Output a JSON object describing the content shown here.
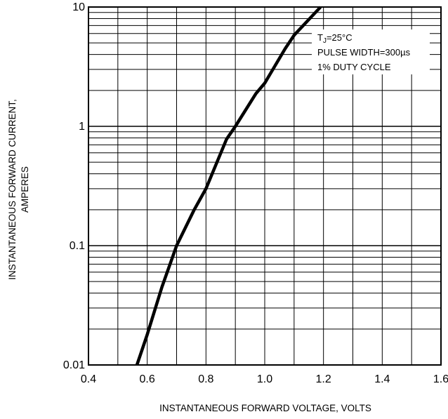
{
  "chart_data": {
    "type": "line",
    "x_scale": "linear",
    "y_scale": "log",
    "xlim": [
      0.4,
      1.6
    ],
    "ylim": [
      0.01,
      10
    ],
    "x_ticks": [
      0.4,
      0.6,
      0.8,
      1.0,
      1.2,
      1.4,
      1.6
    ],
    "x_tick_labels": [
      "0.4",
      "0.6",
      "0.8",
      "1.0",
      "1.2",
      "1.4",
      "1.6"
    ],
    "y_ticks": [
      0.01,
      0.1,
      1,
      10
    ],
    "y_tick_labels": [
      "0.01",
      "0.1",
      "1",
      "10"
    ],
    "xlabel": "INSTANTANEOUS FORWARD VOLTAGE, VOLTS",
    "ylabel_line1": "INSTANTANEOUS FORWARD CURRENT,",
    "ylabel_line2": "AMPERES",
    "grid": true,
    "annotation": {
      "tj_main": "T",
      "tj_sub": "J",
      "tj_rest": "=25°C",
      "line2": "PULSE WIDTH=300µs",
      "line3": "1% DUTY CYCLE",
      "placement": "top-right"
    },
    "series": [
      {
        "x": [
          0.565,
          0.6,
          0.65,
          0.7,
          0.76,
          0.8,
          0.87,
          0.9,
          0.97,
          1.0,
          1.07,
          1.1,
          1.19
        ],
        "y": [
          0.01,
          0.018,
          0.045,
          0.1,
          0.2,
          0.3,
          0.78,
          1.0,
          1.88,
          2.3,
          4.5,
          5.8,
          10
        ]
      }
    ]
  }
}
